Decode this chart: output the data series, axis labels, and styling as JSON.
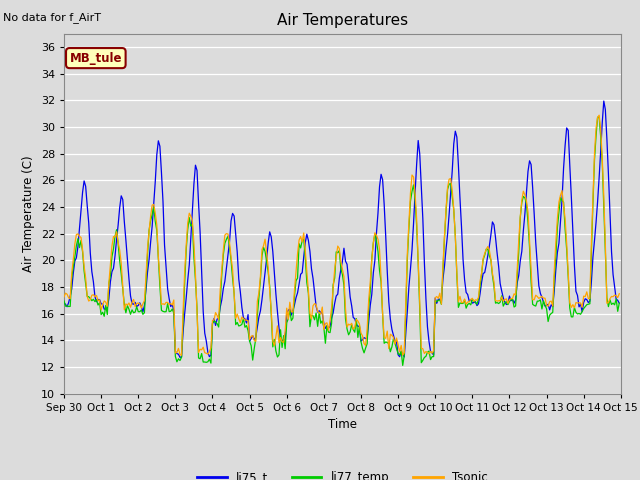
{
  "title": "Air Temperatures",
  "note": "No data for f_AirT",
  "xlabel": "Time",
  "ylabel": "Air Temperature (C)",
  "ylim": [
    10,
    37
  ],
  "yticks": [
    10,
    12,
    14,
    16,
    18,
    20,
    22,
    24,
    26,
    28,
    30,
    32,
    34,
    36
  ],
  "legend_labels": [
    "li75_t",
    "li77_temp",
    "Tsonic"
  ],
  "li75_color": "#0000EE",
  "li77_color": "#00CC00",
  "tsonic_color": "#FFA500",
  "annotation_text": "MB_tule",
  "annotation_bg": "#FFFFBB",
  "annotation_border": "#880000",
  "bg_color": "#DCDCDC",
  "xtick_labels": [
    "Sep 30",
    "Oct 1",
    "Oct 2",
    "Oct 3",
    "Oct 4",
    "Oct 5",
    "Oct 6",
    "Oct 7",
    "Oct 8",
    "Oct 9",
    "Oct 10",
    "Oct 11",
    "Oct 12",
    "Oct 13",
    "Oct 14",
    "Oct 15"
  ],
  "xtick_positions": [
    0,
    24,
    48,
    72,
    96,
    120,
    144,
    168,
    192,
    216,
    240,
    264,
    288,
    312,
    336,
    360
  ]
}
